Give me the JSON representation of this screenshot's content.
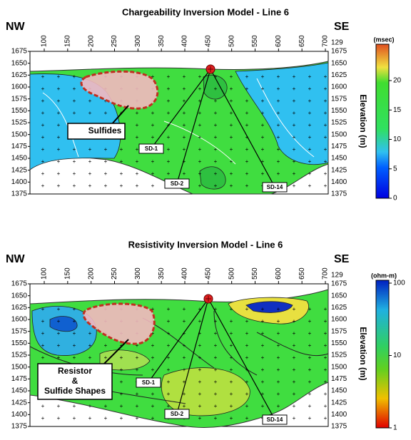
{
  "panels": [
    {
      "title": "Chargeability Inversion Model - Line 6",
      "left": "NW",
      "right": "SE",
      "corner": "129",
      "xticks": [
        100,
        150,
        200,
        250,
        300,
        350,
        400,
        450,
        500,
        550,
        600,
        650,
        700
      ],
      "yticks": [
        1675,
        1650,
        1625,
        1600,
        1575,
        1550,
        1525,
        1500,
        1475,
        1450,
        1425,
        1400,
        1375
      ],
      "y_axis_label": "Elevation (m)",
      "colorbar": {
        "unit": "(msec)",
        "ticks": [
          0,
          5,
          10,
          15,
          20
        ],
        "log": false
      },
      "callout": [
        "Sulfides"
      ],
      "holes": [
        "SD-1",
        "SD-2",
        "SD-14"
      ]
    },
    {
      "title": "Resistivity Inversion Model - Line 6",
      "left": "NW",
      "right": "SE",
      "corner": "129",
      "xticks": [
        100,
        150,
        200,
        250,
        300,
        350,
        400,
        450,
        500,
        550,
        600,
        650,
        700
      ],
      "yticks": [
        1675,
        1650,
        1625,
        1600,
        1575,
        1550,
        1525,
        1500,
        1475,
        1450,
        1425,
        1400,
        1375
      ],
      "y_axis_label": "Elevation (m)",
      "colorbar": {
        "unit": "(ohm-m)",
        "ticks": [
          1,
          10,
          100
        ],
        "log": true
      },
      "callout": [
        "Resistor",
        "&",
        "Sulfide Shapes"
      ],
      "holes": [
        "SD-1",
        "SD-2",
        "SD-14"
      ]
    }
  ]
}
